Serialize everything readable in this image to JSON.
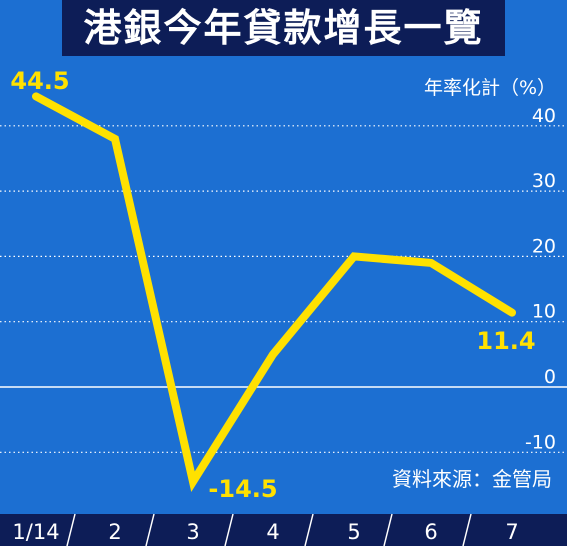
{
  "title": "港銀今年貸款增長一覽",
  "colors": {
    "background": "#1c6fd2",
    "title_bar": "#0d1d57",
    "line": "#ffe100",
    "label": "#ffe100",
    "grid": "#ffffff",
    "axis_text": "#ffffff"
  },
  "chart_data": {
    "type": "line",
    "title": "港銀今年貸款增長一覽",
    "unit_label": "年率化計（%）",
    "source": "資料來源：金管局",
    "x": [
      "1/14",
      "2",
      "3",
      "4",
      "5",
      "6",
      "7"
    ],
    "series": [
      {
        "values": [
          44.5,
          38,
          -14.5,
          5,
          20,
          19,
          11.4
        ]
      }
    ],
    "ylim": [
      -17,
      47
    ],
    "yticks": [
      40,
      30,
      20,
      10,
      0,
      -10
    ],
    "ytick_labels": [
      "40",
      "30",
      "20",
      "10",
      "0",
      "-10"
    ],
    "data_labels": [
      {
        "index": 0,
        "text": "44.5"
      },
      {
        "index": 2,
        "text": "-14.5"
      },
      {
        "index": 6,
        "text": "11.4"
      }
    ],
    "grid": "dotted horizontal, solid at zero"
  }
}
